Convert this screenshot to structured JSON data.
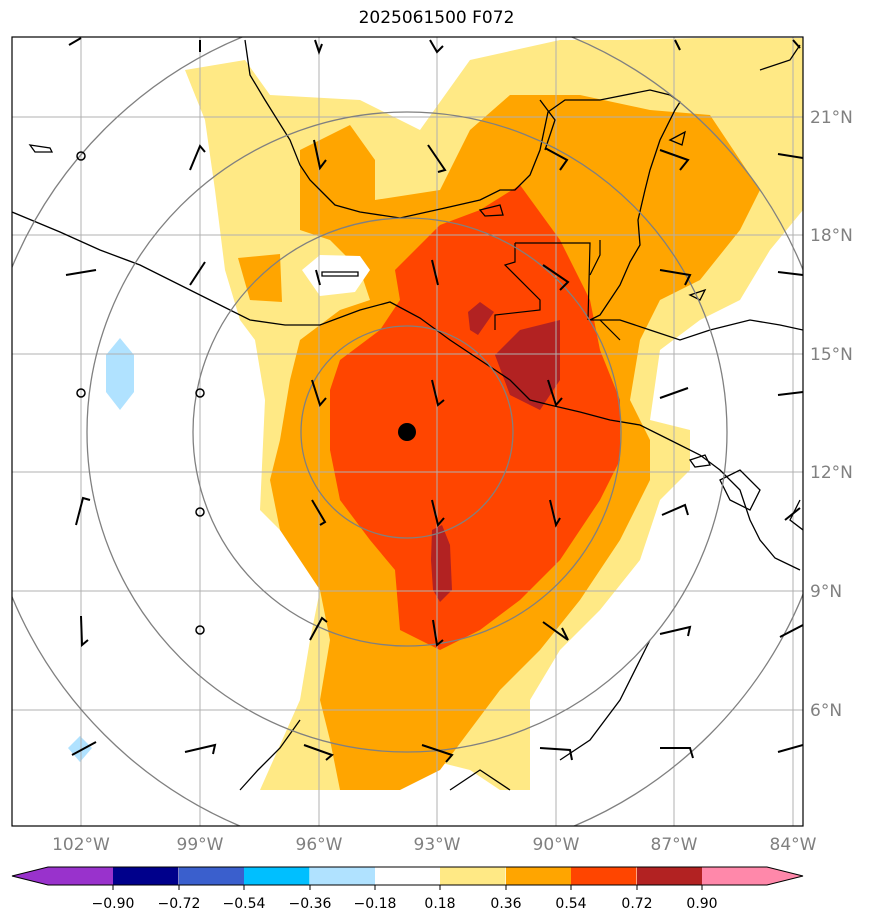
{
  "title": "2025061500 F072",
  "lon_labels": [
    "102°W",
    "99°W",
    "96°W",
    "93°W",
    "90°W",
    "87°W",
    "84°W"
  ],
  "lat_labels": [
    "21°N",
    "18°N",
    "15°N",
    "12°N",
    "9°N",
    "6°N"
  ],
  "colorbar": {
    "ticks": [
      "−0.90",
      "−0.72",
      "−0.54",
      "−0.36",
      "−0.18",
      "0.18",
      "0.36",
      "0.54",
      "0.72",
      "0.90"
    ],
    "colors": [
      "#9932cc",
      "#00008b",
      "#3a5fcd",
      "#00bfff",
      "#b0e2ff",
      "#ffffff",
      "#ffe985",
      "#ffa500",
      "#ff4500",
      "#b22222",
      "#ff88aa"
    ]
  },
  "center_marker": {
    "lon": -93.9,
    "lat": 13.0
  },
  "colors": {
    "grid": "#b0b0b0",
    "coast": "#000000",
    "rings": "#808080"
  }
}
